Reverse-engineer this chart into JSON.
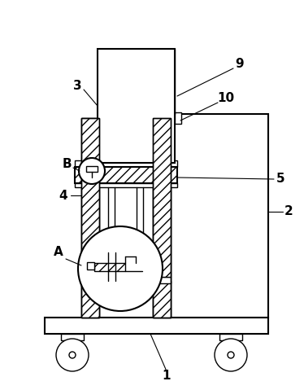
{
  "bg_color": "#ffffff",
  "line_color": "#000000",
  "figsize": [
    3.74,
    4.79
  ],
  "dpi": 100
}
